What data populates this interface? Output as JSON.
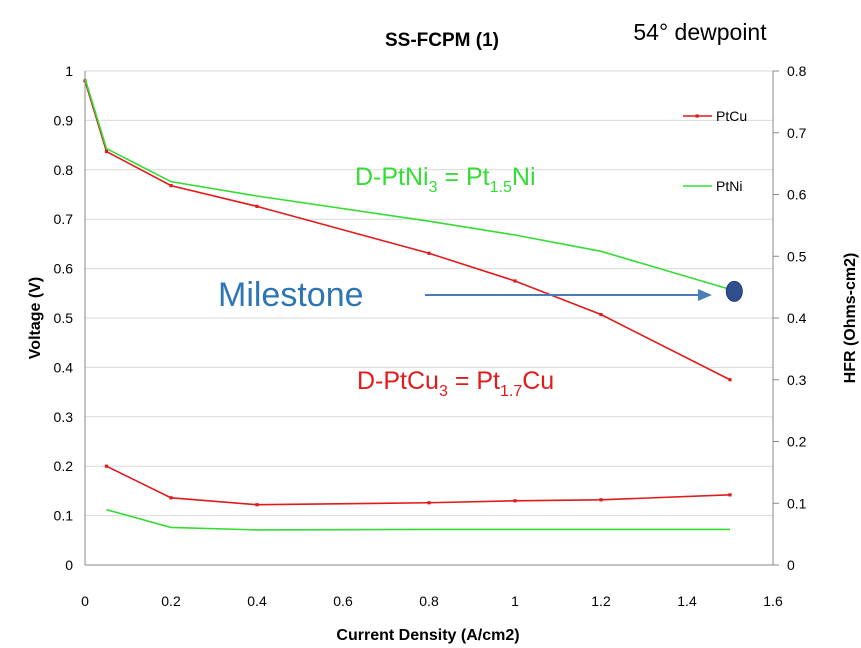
{
  "chart_data": {
    "type": "line",
    "title": "SS-FCPM (1)",
    "subtitle": "54° dewpoint",
    "xlabel": "Current Density (A/cm2)",
    "ylabel": "Voltage (V)",
    "y2label": "HFR (Ohms-cm2)",
    "xlim": [
      0,
      1.6
    ],
    "ylim": [
      0,
      1
    ],
    "y2lim": [
      0,
      0.8
    ],
    "x_ticks": [
      "0",
      "0.2",
      "0.4",
      "0.6",
      "0.8",
      "1",
      "1.2",
      "1.4",
      "1.6"
    ],
    "y_ticks": [
      "0",
      "0.1",
      "0.2",
      "0.3",
      "0.4",
      "0.5",
      "0.6",
      "0.7",
      "0.8",
      "0.9",
      "1"
    ],
    "y2_ticks": [
      "0",
      "0.1",
      "0.2",
      "0.3",
      "0.4",
      "0.5",
      "0.6",
      "0.7",
      "0.8"
    ],
    "grid": "horizontal",
    "legend_position": "right",
    "series": [
      {
        "name": "PtCu",
        "axis": "left",
        "color": "#e31a1c",
        "marker": true,
        "x": [
          0,
          0.05,
          0.2,
          0.4,
          0.8,
          1.0,
          1.2,
          1.5
        ],
        "y": [
          0.98,
          0.837,
          0.768,
          0.726,
          0.631,
          0.575,
          0.507,
          0.375
        ]
      },
      {
        "name": "PtNi",
        "axis": "left",
        "color": "#33dd33",
        "marker": false,
        "x": [
          0,
          0.05,
          0.2,
          0.4,
          0.8,
          1.0,
          1.2,
          1.5
        ],
        "y": [
          0.985,
          0.843,
          0.776,
          0.747,
          0.696,
          0.668,
          0.635,
          0.558
        ]
      },
      {
        "name": "PtCu HFR",
        "axis": "left",
        "color": "#e31a1c",
        "marker": true,
        "x": [
          0.05,
          0.2,
          0.4,
          0.8,
          1.0,
          1.2,
          1.5
        ],
        "y": [
          0.2,
          0.136,
          0.122,
          0.126,
          0.13,
          0.132,
          0.142
        ]
      },
      {
        "name": "PtNi HFR",
        "axis": "left",
        "color": "#33dd33",
        "marker": false,
        "x": [
          0.05,
          0.2,
          0.4,
          0.8,
          1.0,
          1.2,
          1.5
        ],
        "y": [
          0.112,
          0.076,
          0.071,
          0.072,
          0.072,
          0.072,
          0.072
        ]
      }
    ],
    "legend": [
      {
        "label": "PtCu",
        "color": "#e31a1c",
        "marker": true
      },
      {
        "label": "PtNi",
        "color": "#33dd33",
        "marker": false
      }
    ],
    "annotations": {
      "ptni": {
        "base": "D-PtNi",
        "sub1": "3",
        "eq": " = Pt",
        "sub2": "1.5",
        "tail": "Ni",
        "color": "#33dd33"
      },
      "ptcu": {
        "base": "D-PtCu",
        "sub1": "3",
        "eq": " = Pt",
        "sub2": "1.7",
        "tail": "Cu",
        "color": "#e31a1c"
      },
      "milestone": {
        "label": "Milestone",
        "color": "#2e75b6",
        "marker_x": 1.51,
        "marker_y": 0.558
      }
    }
  }
}
